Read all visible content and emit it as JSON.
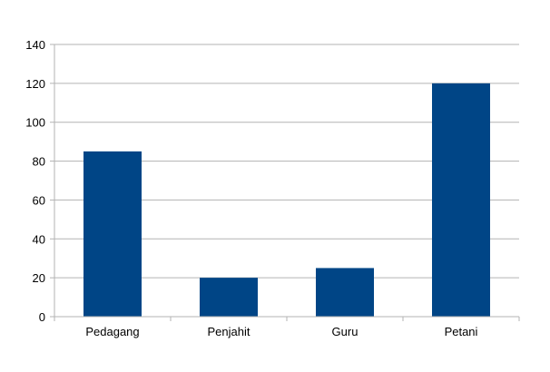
{
  "chart_data": {
    "type": "bar",
    "title": "",
    "xlabel": "",
    "ylabel": "",
    "categories": [
      "Pedagang",
      "Penjahit",
      "Guru",
      "Petani"
    ],
    "values": [
      85,
      20,
      25,
      120
    ],
    "ylim": [
      0,
      140
    ],
    "yticks": [
      0,
      20,
      40,
      60,
      80,
      100,
      120,
      140
    ],
    "grid": true,
    "legend": "none",
    "colors": {
      "bar": "#004586",
      "grid": "#b3b3b3",
      "axis": "#b3b3b3"
    }
  }
}
